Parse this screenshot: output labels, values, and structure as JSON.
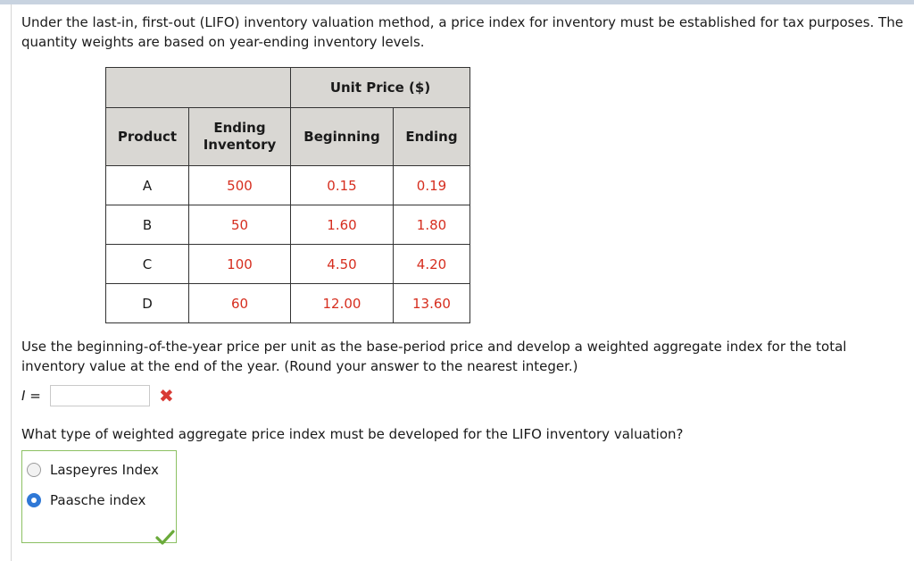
{
  "intro_text": "Under the last-in, first-out (LIFO) inventory valuation method, a price index for inventory must be established for tax purposes. The quantity weights are based on year-ending inventory levels.",
  "table": {
    "unit_price_header": "Unit Price ($)",
    "headers": {
      "product": "Product",
      "ending_inventory": "Ending Inventory",
      "beginning": "Beginning",
      "ending": "Ending"
    },
    "rows": [
      {
        "product": "A",
        "ending_inventory": "500",
        "beginning": "0.15",
        "ending": "0.19"
      },
      {
        "product": "B",
        "ending_inventory": "50",
        "beginning": "1.60",
        "ending": "1.80"
      },
      {
        "product": "C",
        "ending_inventory": "100",
        "beginning": "4.50",
        "ending": "4.20"
      },
      {
        "product": "D",
        "ending_inventory": "60",
        "beginning": "12.00",
        "ending": "13.60"
      }
    ]
  },
  "question1": "Use the beginning-of-the-year price per unit as the base-period price and develop a weighted aggregate index for the total inventory value at the end of the year. (Round your answer to the nearest integer.)",
  "answer": {
    "label": "I =",
    "value": "",
    "status_icon": "x-icon"
  },
  "question2": "What type of weighted aggregate price index must be developed for the LIFO inventory valuation?",
  "choices": [
    {
      "label": "Laspeyres Index",
      "selected": false
    },
    {
      "label": "Paasche index",
      "selected": true
    }
  ],
  "colors": {
    "value_red": "#d62e1f",
    "header_bg": "#d9d7d3",
    "correct_green": "#8cc063",
    "incorrect_red": "#d83a34",
    "radio_blue": "#2f78d6"
  }
}
